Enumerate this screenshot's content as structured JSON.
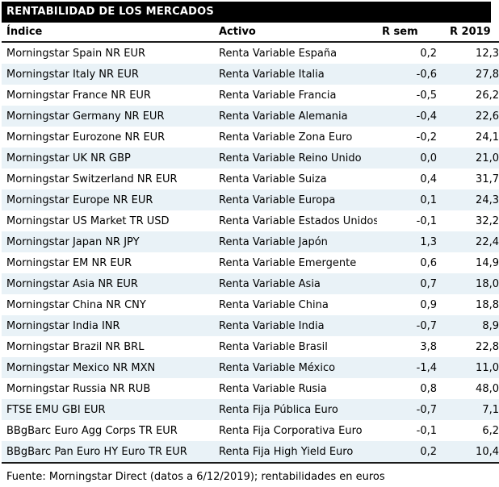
{
  "title": "RENTABILIDAD DE LOS MERCADOS",
  "columns": {
    "indice": "Índice",
    "activo": "Activo",
    "r_sem": "R sem",
    "r_2019": "R 2019"
  },
  "rows": [
    {
      "indice": "Morningstar Spain NR EUR",
      "activo": "Renta Variable España",
      "r_sem": "0,2",
      "r_2019": "12,3"
    },
    {
      "indice": "Morningstar Italy NR EUR",
      "activo": "Renta Variable Italia",
      "r_sem": "-0,6",
      "r_2019": "27,8"
    },
    {
      "indice": "Morningstar France NR EUR",
      "activo": "Renta Variable Francia",
      "r_sem": "-0,5",
      "r_2019": "26,2"
    },
    {
      "indice": "Morningstar Germany NR EUR",
      "activo": "Renta Variable Alemania",
      "r_sem": "-0,4",
      "r_2019": "22,6"
    },
    {
      "indice": "Morningstar Eurozone NR EUR",
      "activo": "Renta Variable Zona Euro",
      "r_sem": "-0,2",
      "r_2019": "24,1"
    },
    {
      "indice": "Morningstar UK NR GBP",
      "activo": "Renta Variable Reino Unido",
      "r_sem": "0,0",
      "r_2019": "21,0"
    },
    {
      "indice": "Morningstar Switzerland NR EUR",
      "activo": "Renta Variable Suiza",
      "r_sem": "0,4",
      "r_2019": "31,7"
    },
    {
      "indice": "Morningstar Europe NR EUR",
      "activo": "Renta Variable Europa",
      "r_sem": "0,1",
      "r_2019": "24,3"
    },
    {
      "indice": "Morningstar US Market TR USD",
      "activo": "Renta Variable Estados Unidos",
      "r_sem": "-0,1",
      "r_2019": "32,2"
    },
    {
      "indice": "Morningstar Japan NR JPY",
      "activo": "Renta Variable Japón",
      "r_sem": "1,3",
      "r_2019": "22,4"
    },
    {
      "indice": "Morningstar EM NR EUR",
      "activo": "Renta Variable Emergente",
      "r_sem": "0,6",
      "r_2019": "14,9"
    },
    {
      "indice": "Morningstar Asia NR EUR",
      "activo": "Renta Variable Asia",
      "r_sem": "0,7",
      "r_2019": "18,0"
    },
    {
      "indice": "Morningstar China NR CNY",
      "activo": "Renta Variable China",
      "r_sem": "0,9",
      "r_2019": "18,8"
    },
    {
      "indice": "Morningstar India INR",
      "activo": "Renta Variable India",
      "r_sem": "-0,7",
      "r_2019": "8,9"
    },
    {
      "indice": "Morningstar Brazil NR BRL",
      "activo": "Renta Variable Brasil",
      "r_sem": "3,8",
      "r_2019": "22,8"
    },
    {
      "indice": "Morningstar Mexico NR MXN",
      "activo": "Renta Variable México",
      "r_sem": "-1,4",
      "r_2019": "11,0"
    },
    {
      "indice": "Morningstar Russia NR RUB",
      "activo": "Renta Variable Rusia",
      "r_sem": "0,8",
      "r_2019": "48,0"
    },
    {
      "indice": "FTSE EMU GBI EUR",
      "activo": "Renta Fija Pública Euro",
      "r_sem": "-0,7",
      "r_2019": "7,1"
    },
    {
      "indice": "BBgBarc Euro Agg Corps TR EUR",
      "activo": "Renta Fija Corporativa Euro",
      "r_sem": "-0,1",
      "r_2019": "6,2"
    },
    {
      "indice": "BBgBarc Pan Euro HY Euro TR EUR",
      "activo": "Renta Fija High Yield Euro",
      "r_sem": "0,2",
      "r_2019": "10,4"
    }
  ],
  "footer": "Fuente: Morningstar Direct (datos a 6/12/2019); rentabilidades en euros",
  "colors": {
    "title_bar_bg": "#000000",
    "title_bar_text": "#ffffff",
    "alt_row_bg": "#e9f2f7",
    "text": "#000000",
    "rule": "#1a1a1a"
  }
}
